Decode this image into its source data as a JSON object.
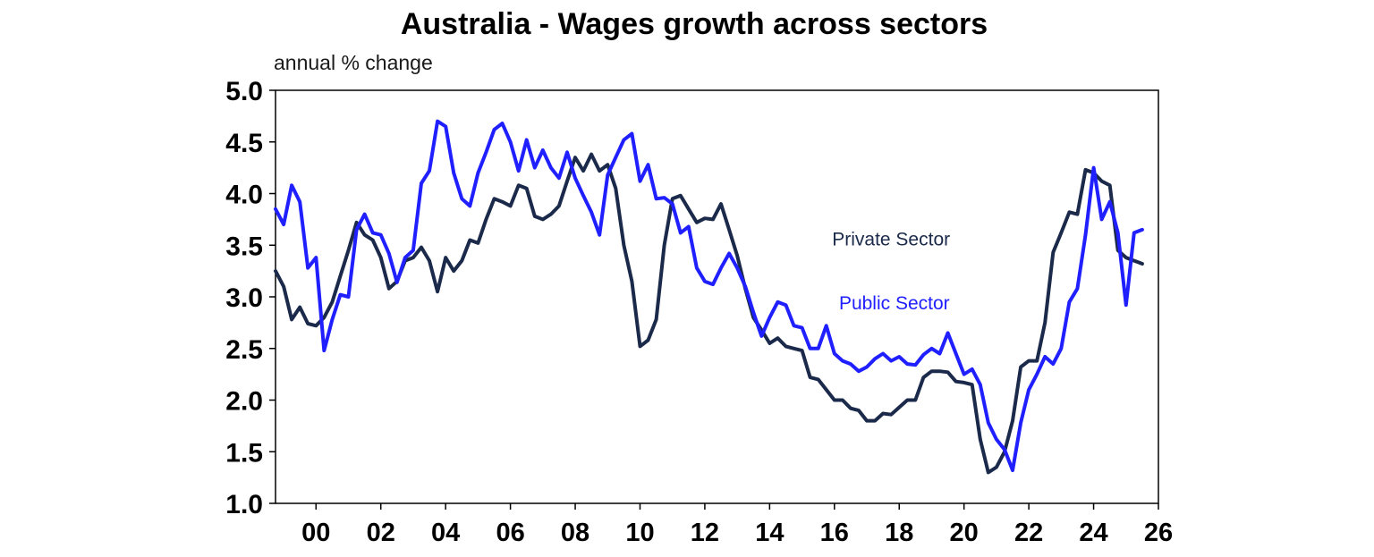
{
  "chart_data": {
    "type": "line",
    "title": "Australia - Wages growth across sectors",
    "ylabel": "annual % change",
    "xlabel": "",
    "xlim": [
      1998.75,
      2026.0
    ],
    "ylim": [
      1.0,
      5.0
    ],
    "yticks": [
      "1.0",
      "1.5",
      "2.0",
      "2.5",
      "3.0",
      "3.5",
      "4.0",
      "4.5",
      "5.0"
    ],
    "xticks": [
      "00",
      "02",
      "04",
      "06",
      "08",
      "10",
      "12",
      "14",
      "16",
      "18",
      "20",
      "22",
      "24",
      "26"
    ],
    "xtick_values": [
      2000,
      2002,
      2004,
      2006,
      2008,
      2010,
      2012,
      2014,
      2016,
      2018,
      2020,
      2022,
      2024,
      2026
    ],
    "grid": false,
    "series": [
      {
        "name": "Private Sector",
        "color": "#1b2a4a",
        "label_at": [
          2017.75,
          3.5
        ],
        "points": [
          [
            1998.75,
            3.25
          ],
          [
            1999.0,
            3.1
          ],
          [
            1999.25,
            2.78
          ],
          [
            1999.5,
            2.9
          ],
          [
            1999.75,
            2.74
          ],
          [
            2000.0,
            2.72
          ],
          [
            2000.25,
            2.8
          ],
          [
            2000.5,
            2.95
          ],
          [
            2000.75,
            3.2
          ],
          [
            2001.0,
            3.45
          ],
          [
            2001.25,
            3.72
          ],
          [
            2001.5,
            3.6
          ],
          [
            2001.75,
            3.55
          ],
          [
            2002.0,
            3.38
          ],
          [
            2002.25,
            3.08
          ],
          [
            2002.5,
            3.15
          ],
          [
            2002.75,
            3.35
          ],
          [
            2003.0,
            3.38
          ],
          [
            2003.25,
            3.48
          ],
          [
            2003.5,
            3.35
          ],
          [
            2003.75,
            3.05
          ],
          [
            2004.0,
            3.38
          ],
          [
            2004.25,
            3.25
          ],
          [
            2004.5,
            3.35
          ],
          [
            2004.75,
            3.55
          ],
          [
            2005.0,
            3.52
          ],
          [
            2005.25,
            3.75
          ],
          [
            2005.5,
            3.95
          ],
          [
            2005.75,
            3.92
          ],
          [
            2006.0,
            3.88
          ],
          [
            2006.25,
            4.08
          ],
          [
            2006.5,
            4.05
          ],
          [
            2006.75,
            3.78
          ],
          [
            2007.0,
            3.75
          ],
          [
            2007.25,
            3.8
          ],
          [
            2007.5,
            3.88
          ],
          [
            2007.75,
            4.12
          ],
          [
            2008.0,
            4.35
          ],
          [
            2008.25,
            4.22
          ],
          [
            2008.5,
            4.38
          ],
          [
            2008.75,
            4.22
          ],
          [
            2009.0,
            4.28
          ],
          [
            2009.25,
            4.05
          ],
          [
            2009.5,
            3.5
          ],
          [
            2009.75,
            3.15
          ],
          [
            2010.0,
            2.52
          ],
          [
            2010.25,
            2.58
          ],
          [
            2010.5,
            2.78
          ],
          [
            2010.75,
            3.5
          ],
          [
            2011.0,
            3.95
          ],
          [
            2011.25,
            3.98
          ],
          [
            2011.5,
            3.85
          ],
          [
            2011.75,
            3.72
          ],
          [
            2012.0,
            3.76
          ],
          [
            2012.25,
            3.75
          ],
          [
            2012.5,
            3.9
          ],
          [
            2012.75,
            3.65
          ],
          [
            2013.0,
            3.4
          ],
          [
            2013.25,
            3.08
          ],
          [
            2013.5,
            2.8
          ],
          [
            2013.75,
            2.68
          ],
          [
            2014.0,
            2.55
          ],
          [
            2014.25,
            2.6
          ],
          [
            2014.5,
            2.52
          ],
          [
            2014.75,
            2.5
          ],
          [
            2015.0,
            2.48
          ],
          [
            2015.25,
            2.22
          ],
          [
            2015.5,
            2.2
          ],
          [
            2015.75,
            2.1
          ],
          [
            2016.0,
            2.0
          ],
          [
            2016.25,
            2.0
          ],
          [
            2016.5,
            1.92
          ],
          [
            2016.75,
            1.9
          ],
          [
            2017.0,
            1.8
          ],
          [
            2017.25,
            1.8
          ],
          [
            2017.5,
            1.87
          ],
          [
            2017.75,
            1.86
          ],
          [
            2018.0,
            1.93
          ],
          [
            2018.25,
            2.0
          ],
          [
            2018.5,
            2.0
          ],
          [
            2018.75,
            2.22
          ],
          [
            2019.0,
            2.28
          ],
          [
            2019.25,
            2.28
          ],
          [
            2019.5,
            2.27
          ],
          [
            2019.75,
            2.18
          ],
          [
            2020.0,
            2.17
          ],
          [
            2020.25,
            2.15
          ],
          [
            2020.5,
            1.62
          ],
          [
            2020.75,
            1.3
          ],
          [
            2021.0,
            1.35
          ],
          [
            2021.25,
            1.5
          ],
          [
            2021.5,
            1.8
          ],
          [
            2021.75,
            2.32
          ],
          [
            2022.0,
            2.38
          ],
          [
            2022.25,
            2.38
          ],
          [
            2022.5,
            2.75
          ],
          [
            2022.75,
            3.43
          ],
          [
            2023.0,
            3.62
          ],
          [
            2023.25,
            3.82
          ],
          [
            2023.5,
            3.8
          ],
          [
            2023.75,
            4.23
          ],
          [
            2024.0,
            4.2
          ],
          [
            2024.25,
            4.12
          ],
          [
            2024.5,
            4.08
          ],
          [
            2024.75,
            3.45
          ],
          [
            2025.0,
            3.38
          ],
          [
            2025.25,
            3.35
          ],
          [
            2025.5,
            3.32
          ]
        ]
      },
      {
        "name": "Public Sector",
        "color": "#1f1fff",
        "label_at": [
          2017.85,
          2.88
        ],
        "points": [
          [
            1998.75,
            3.85
          ],
          [
            1999.0,
            3.7
          ],
          [
            1999.25,
            4.08
          ],
          [
            1999.5,
            3.92
          ],
          [
            1999.75,
            3.28
          ],
          [
            2000.0,
            3.38
          ],
          [
            2000.25,
            2.48
          ],
          [
            2000.5,
            2.78
          ],
          [
            2000.75,
            3.02
          ],
          [
            2001.0,
            3.0
          ],
          [
            2001.25,
            3.65
          ],
          [
            2001.5,
            3.8
          ],
          [
            2001.75,
            3.62
          ],
          [
            2002.0,
            3.6
          ],
          [
            2002.25,
            3.42
          ],
          [
            2002.5,
            3.14
          ],
          [
            2002.75,
            3.38
          ],
          [
            2003.0,
            3.45
          ],
          [
            2003.25,
            4.1
          ],
          [
            2003.5,
            4.22
          ],
          [
            2003.75,
            4.7
          ],
          [
            2004.0,
            4.65
          ],
          [
            2004.25,
            4.2
          ],
          [
            2004.5,
            3.95
          ],
          [
            2004.75,
            3.88
          ],
          [
            2005.0,
            4.2
          ],
          [
            2005.25,
            4.4
          ],
          [
            2005.5,
            4.62
          ],
          [
            2005.75,
            4.68
          ],
          [
            2006.0,
            4.5
          ],
          [
            2006.25,
            4.22
          ],
          [
            2006.5,
            4.52
          ],
          [
            2006.75,
            4.25
          ],
          [
            2007.0,
            4.42
          ],
          [
            2007.25,
            4.25
          ],
          [
            2007.5,
            4.15
          ],
          [
            2007.75,
            4.4
          ],
          [
            2008.0,
            4.15
          ],
          [
            2008.25,
            3.98
          ],
          [
            2008.5,
            3.82
          ],
          [
            2008.75,
            3.6
          ],
          [
            2009.0,
            4.18
          ],
          [
            2009.25,
            4.35
          ],
          [
            2009.5,
            4.52
          ],
          [
            2009.75,
            4.58
          ],
          [
            2010.0,
            4.12
          ],
          [
            2010.25,
            4.28
          ],
          [
            2010.5,
            3.95
          ],
          [
            2010.75,
            3.96
          ],
          [
            2011.0,
            3.9
          ],
          [
            2011.25,
            3.62
          ],
          [
            2011.5,
            3.68
          ],
          [
            2011.75,
            3.28
          ],
          [
            2012.0,
            3.15
          ],
          [
            2012.25,
            3.12
          ],
          [
            2012.5,
            3.28
          ],
          [
            2012.75,
            3.42
          ],
          [
            2013.0,
            3.28
          ],
          [
            2013.25,
            3.1
          ],
          [
            2013.5,
            2.85
          ],
          [
            2013.75,
            2.62
          ],
          [
            2014.0,
            2.8
          ],
          [
            2014.25,
            2.95
          ],
          [
            2014.5,
            2.92
          ],
          [
            2014.75,
            2.72
          ],
          [
            2015.0,
            2.7
          ],
          [
            2015.25,
            2.5
          ],
          [
            2015.5,
            2.5
          ],
          [
            2015.75,
            2.72
          ],
          [
            2016.0,
            2.45
          ],
          [
            2016.25,
            2.38
          ],
          [
            2016.5,
            2.35
          ],
          [
            2016.75,
            2.28
          ],
          [
            2017.0,
            2.32
          ],
          [
            2017.25,
            2.4
          ],
          [
            2017.5,
            2.45
          ],
          [
            2017.75,
            2.38
          ],
          [
            2018.0,
            2.42
          ],
          [
            2018.25,
            2.35
          ],
          [
            2018.5,
            2.34
          ],
          [
            2018.75,
            2.44
          ],
          [
            2019.0,
            2.5
          ],
          [
            2019.25,
            2.45
          ],
          [
            2019.5,
            2.65
          ],
          [
            2019.75,
            2.45
          ],
          [
            2020.0,
            2.25
          ],
          [
            2020.25,
            2.3
          ],
          [
            2020.5,
            2.15
          ],
          [
            2020.75,
            1.78
          ],
          [
            2021.0,
            1.62
          ],
          [
            2021.25,
            1.52
          ],
          [
            2021.5,
            1.32
          ],
          [
            2021.75,
            1.78
          ],
          [
            2022.0,
            2.1
          ],
          [
            2022.25,
            2.25
          ],
          [
            2022.5,
            2.42
          ],
          [
            2022.75,
            2.35
          ],
          [
            2023.0,
            2.5
          ],
          [
            2023.25,
            2.95
          ],
          [
            2023.5,
            3.08
          ],
          [
            2023.75,
            3.6
          ],
          [
            2024.0,
            4.25
          ],
          [
            2024.25,
            3.75
          ],
          [
            2024.5,
            3.92
          ],
          [
            2024.75,
            3.62
          ],
          [
            2025.0,
            2.92
          ],
          [
            2025.25,
            3.62
          ],
          [
            2025.5,
            3.65
          ]
        ]
      }
    ]
  }
}
